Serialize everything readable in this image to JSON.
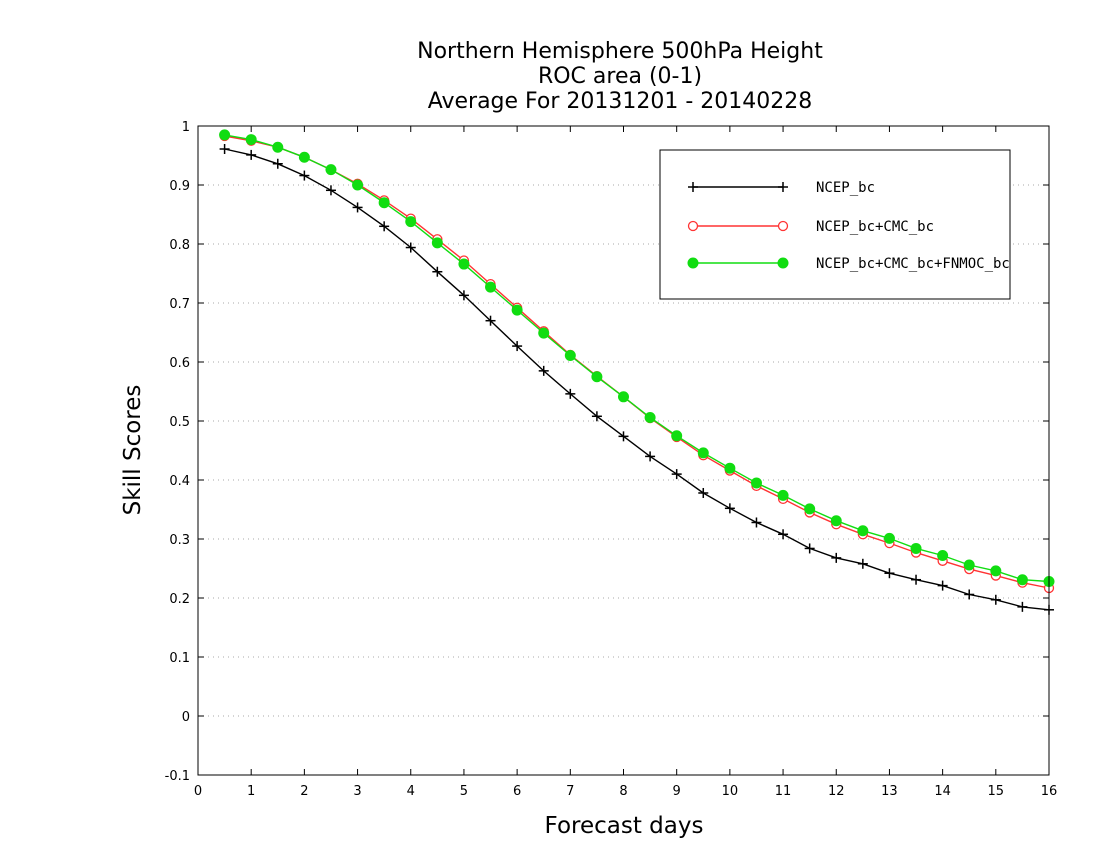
{
  "chart_data": {
    "type": "line",
    "title": [
      "Northern Hemisphere 500hPa Height",
      "ROC area (0-1)",
      "Average For 20131201 - 20140228"
    ],
    "xlabel": "Forecast days",
    "ylabel": "Skill Scores",
    "xlim": [
      0,
      16
    ],
    "ylim": [
      -0.1,
      1
    ],
    "x_ticks": [
      0,
      1,
      2,
      3,
      4,
      5,
      6,
      7,
      8,
      9,
      10,
      11,
      12,
      13,
      14,
      15,
      16
    ],
    "x_tick_labels": [
      "0",
      "1",
      "2",
      "3",
      "4",
      "5",
      "6",
      "7",
      "8",
      "9",
      "10",
      "11",
      "12",
      "13",
      "14",
      "15",
      "16"
    ],
    "y_ticks": [
      -0.1,
      0,
      0.1,
      0.2,
      0.3,
      0.4,
      0.5,
      0.6,
      0.7,
      0.8,
      0.9,
      1
    ],
    "y_tick_labels": [
      "-0.1",
      "0",
      "0.1",
      "0.2",
      "0.3",
      "0.4",
      "0.5",
      "0.6",
      "0.7",
      "0.8",
      "0.9",
      "1"
    ],
    "grid": "horizontal-dotted",
    "legend_position": "top-right",
    "x": [
      0.5,
      1,
      1.5,
      2,
      2.5,
      3,
      3.5,
      4,
      4.5,
      5,
      5.5,
      6,
      6.5,
      7,
      7.5,
      8,
      8.5,
      9,
      9.5,
      10,
      10.5,
      11,
      11.5,
      12,
      12.5,
      13,
      13.5,
      14,
      14.5,
      15,
      15.5,
      16
    ],
    "series": [
      {
        "name": "NCEP_bc",
        "color": "#000000",
        "marker": "plus",
        "values": [
          0.961,
          0.951,
          0.936,
          0.916,
          0.891,
          0.862,
          0.83,
          0.794,
          0.753,
          0.713,
          0.67,
          0.627,
          0.585,
          0.546,
          0.508,
          0.474,
          0.44,
          0.41,
          0.378,
          0.352,
          0.328,
          0.308,
          0.284,
          0.268,
          0.258,
          0.242,
          0.231,
          0.221,
          0.206,
          0.197,
          0.185,
          0.18
        ]
      },
      {
        "name": "NCEP_bc+CMC_bc",
        "color": "#ff3333",
        "marker": "open-circle",
        "values": [
          0.983,
          0.975,
          0.964,
          0.947,
          0.926,
          0.902,
          0.874,
          0.843,
          0.808,
          0.772,
          0.732,
          0.692,
          0.652,
          0.612,
          0.576,
          0.541,
          0.505,
          0.473,
          0.442,
          0.416,
          0.39,
          0.368,
          0.345,
          0.325,
          0.308,
          0.293,
          0.277,
          0.263,
          0.249,
          0.238,
          0.226,
          0.217
        ]
      },
      {
        "name": "NCEP_bc+CMC_bc+FNMOC_bc",
        "color": "#11dd11",
        "marker": "filled-circle",
        "values": [
          0.985,
          0.977,
          0.964,
          0.947,
          0.926,
          0.9,
          0.87,
          0.838,
          0.802,
          0.766,
          0.727,
          0.688,
          0.649,
          0.611,
          0.575,
          0.541,
          0.506,
          0.475,
          0.446,
          0.42,
          0.395,
          0.374,
          0.351,
          0.331,
          0.314,
          0.301,
          0.284,
          0.272,
          0.256,
          0.246,
          0.231,
          0.228
        ]
      }
    ]
  }
}
